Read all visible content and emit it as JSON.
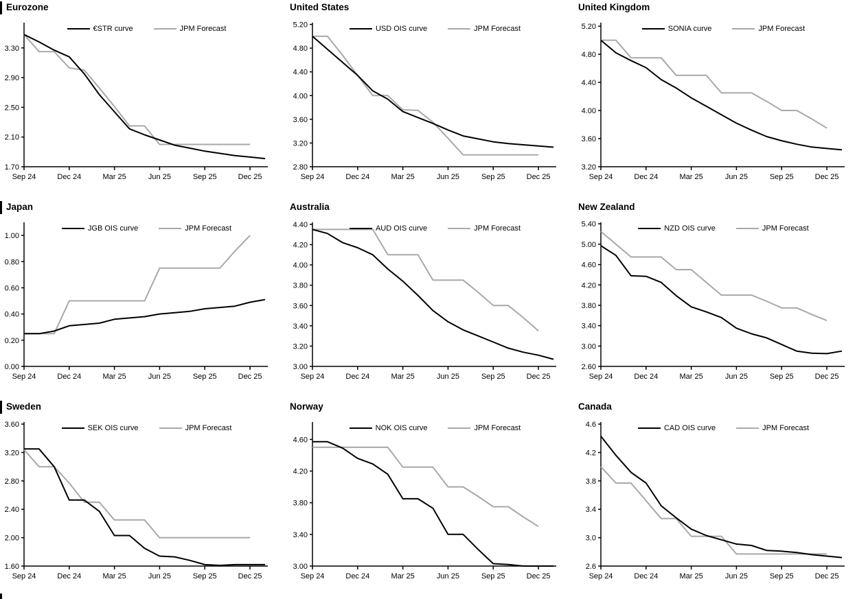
{
  "colors": {
    "ois": "#000000",
    "forecast": "#a8a8a8"
  },
  "x_axis": {
    "tick_labels": [
      "Sep 24",
      "Dec 24",
      "Mar 25",
      "Jun 25",
      "Sep 25",
      "Dec 25"
    ],
    "tick_months": [
      0,
      3,
      6,
      9,
      12,
      15
    ]
  },
  "chart_data": [
    {
      "type": "line",
      "title": "Eurozone",
      "left_accent_bar": true,
      "x_tick_labels": [
        "Sep 24",
        "Dec 24",
        "Mar 25",
        "Jun 25",
        "Sep 25",
        "Dec 25"
      ],
      "ytick_labels": [
        "1.70",
        "2.10",
        "2.50",
        "2.90",
        "3.30"
      ],
      "ylim": [
        1.7,
        3.64
      ],
      "grid": false,
      "legend_position": "top",
      "series": [
        {
          "name": "€STR curve",
          "color_key": "ois",
          "values": [
            3.48,
            3.38,
            3.27,
            3.18,
            2.95,
            2.67,
            2.44,
            2.21,
            2.13,
            2.06,
            1.99,
            1.95,
            1.91,
            1.88,
            1.85,
            1.83,
            1.81
          ]
        },
        {
          "name": "JPM Forecast",
          "color_key": "forecast",
          "values": [
            3.48,
            3.25,
            3.25,
            3.03,
            3.0,
            2.76,
            2.51,
            2.25,
            2.25,
            2.0,
            2.0,
            2.0,
            2.0,
            2.0,
            2.0,
            2.0
          ]
        }
      ]
    },
    {
      "type": "line",
      "title": "United States",
      "left_accent_bar": false,
      "x_tick_labels": [
        "Sep 24",
        "Dec 24",
        "Mar 25",
        "Jun 25",
        "Sep 25",
        "Dec 25"
      ],
      "ytick_labels": [
        "2.80",
        "3.20",
        "3.60",
        "4.00",
        "4.40",
        "4.80",
        "5.20"
      ],
      "ylim": [
        2.8,
        5.23
      ],
      "grid": false,
      "legend_position": "top",
      "series": [
        {
          "name": "USD OIS curve",
          "color_key": "ois",
          "values": [
            5.0,
            4.78,
            4.56,
            4.34,
            4.08,
            3.94,
            3.73,
            3.63,
            3.53,
            3.42,
            3.32,
            3.27,
            3.22,
            3.19,
            3.17,
            3.15,
            3.13
          ]
        },
        {
          "name": "JPM Forecast",
          "color_key": "forecast",
          "values": [
            5.0,
            5.0,
            4.68,
            4.34,
            4.0,
            4.0,
            3.76,
            3.75,
            3.55,
            3.28,
            3.0,
            3.0,
            3.0,
            3.0,
            3.0,
            3.0
          ]
        }
      ]
    },
    {
      "type": "line",
      "title": "United Kingdom",
      "left_accent_bar": false,
      "x_tick_labels": [
        "Sep 24",
        "Dec 24",
        "Mar 25",
        "Jun 25",
        "Sep 25",
        "Dec 25"
      ],
      "ytick_labels": [
        "3.20",
        "3.60",
        "4.00",
        "4.40",
        "4.80",
        "5.20"
      ],
      "ylim": [
        3.2,
        5.25
      ],
      "grid": false,
      "legend_position": "top",
      "series": [
        {
          "name": "SONIA curve",
          "color_key": "ois",
          "values": [
            5.0,
            4.82,
            4.71,
            4.61,
            4.44,
            4.32,
            4.18,
            4.06,
            3.94,
            3.82,
            3.72,
            3.63,
            3.57,
            3.52,
            3.48,
            3.46,
            3.44
          ]
        },
        {
          "name": "JPM Forecast",
          "color_key": "forecast",
          "values": [
            5.0,
            5.0,
            4.75,
            4.75,
            4.75,
            4.5,
            4.5,
            4.5,
            4.25,
            4.25,
            4.25,
            4.13,
            4.0,
            4.0,
            3.88,
            3.75
          ]
        }
      ]
    },
    {
      "type": "line",
      "title": "Japan",
      "left_accent_bar": true,
      "x_tick_labels": [
        "Sep 24",
        "Dec 24",
        "Mar 25",
        "Jun 25",
        "Sep 25",
        "Dec 25"
      ],
      "ytick_labels": [
        "0.00",
        "0.20",
        "0.40",
        "0.60",
        "0.80",
        "1.00"
      ],
      "ylim": [
        0.0,
        1.1
      ],
      "grid": false,
      "legend_position": "top",
      "series": [
        {
          "name": "JGB OIS curve",
          "color_key": "ois",
          "values": [
            0.25,
            0.25,
            0.27,
            0.31,
            0.32,
            0.33,
            0.36,
            0.37,
            0.38,
            0.4,
            0.41,
            0.42,
            0.44,
            0.45,
            0.46,
            0.49,
            0.51
          ]
        },
        {
          "name": "JPM Forecast",
          "color_key": "forecast",
          "values": [
            0.25,
            0.25,
            0.25,
            0.5,
            0.5,
            0.5,
            0.5,
            0.5,
            0.5,
            0.75,
            0.75,
            0.75,
            0.75,
            0.75,
            0.88,
            1.0
          ]
        }
      ]
    },
    {
      "type": "line",
      "title": "Australia",
      "left_accent_bar": false,
      "x_tick_labels": [
        "Sep 24",
        "Dec 24",
        "Mar 25",
        "Jun 25",
        "Sep 25",
        "Dec 25"
      ],
      "ytick_labels": [
        "3.00",
        "3.20",
        "3.40",
        "3.60",
        "3.80",
        "4.00",
        "4.20",
        "4.40"
      ],
      "ylim": [
        3.0,
        4.42
      ],
      "grid": false,
      "legend_position": "top",
      "series": [
        {
          "name": "AUD OIS curve",
          "color_key": "ois",
          "values": [
            4.35,
            4.31,
            4.22,
            4.17,
            4.1,
            3.96,
            3.84,
            3.7,
            3.55,
            3.44,
            3.36,
            3.3,
            3.24,
            3.18,
            3.14,
            3.11,
            3.07
          ]
        },
        {
          "name": "JPM Forecast",
          "color_key": "forecast",
          "values": [
            4.35,
            4.35,
            4.35,
            4.35,
            4.35,
            4.1,
            4.1,
            4.1,
            3.85,
            3.85,
            3.85,
            3.73,
            3.6,
            3.6,
            3.48,
            3.35
          ]
        }
      ]
    },
    {
      "type": "line",
      "title": "New Zealand",
      "left_accent_bar": false,
      "x_tick_labels": [
        "Sep 24",
        "Dec 24",
        "Mar 25",
        "Jun 25",
        "Sep 25",
        "Dec 25"
      ],
      "ytick_labels": [
        "2.60",
        "3.00",
        "3.40",
        "3.80",
        "4.20",
        "4.60",
        "5.00",
        "5.40"
      ],
      "ylim": [
        2.6,
        5.43
      ],
      "grid": false,
      "legend_position": "top",
      "series": [
        {
          "name": "NZD OIS curve",
          "color_key": "ois",
          "values": [
            4.97,
            4.78,
            4.38,
            4.37,
            4.25,
            3.99,
            3.77,
            3.67,
            3.56,
            3.35,
            3.24,
            3.16,
            3.03,
            2.9,
            2.86,
            2.85,
            2.9
          ]
        },
        {
          "name": "JPM Forecast",
          "color_key": "forecast",
          "values": [
            5.25,
            5.0,
            4.75,
            4.75,
            4.75,
            4.5,
            4.5,
            4.25,
            4.0,
            4.0,
            4.0,
            3.88,
            3.75,
            3.75,
            3.62,
            3.5
          ]
        }
      ]
    },
    {
      "type": "line",
      "title": "Sweden",
      "left_accent_bar": true,
      "x_tick_labels": [
        "Sep 24",
        "Dec 24",
        "Mar 25",
        "Jun 25",
        "Sep 25",
        "Dec 25"
      ],
      "ytick_labels": [
        "1.60",
        "2.00",
        "2.40",
        "2.80",
        "3.20",
        "3.60"
      ],
      "ylim": [
        1.6,
        3.63
      ],
      "grid": false,
      "legend_position": "top",
      "series": [
        {
          "name": "SEK OIS curve",
          "color_key": "ois",
          "values": [
            3.25,
            3.25,
            3.0,
            2.53,
            2.53,
            2.37,
            2.03,
            2.03,
            1.85,
            1.74,
            1.73,
            1.68,
            1.62,
            1.61,
            1.62,
            1.62,
            1.62
          ]
        },
        {
          "name": "JPM Forecast",
          "color_key": "forecast",
          "values": [
            3.24,
            3.0,
            3.0,
            2.77,
            2.5,
            2.5,
            2.25,
            2.25,
            2.25,
            2.0,
            2.0,
            2.0,
            2.0,
            2.0,
            2.0,
            2.0
          ]
        }
      ]
    },
    {
      "type": "line",
      "title": "Norway",
      "left_accent_bar": false,
      "x_tick_labels": [
        "Sep 24",
        "Dec 24",
        "Mar 25",
        "Jun 25",
        "Sep 25",
        "Dec 25"
      ],
      "ytick_labels": [
        "3.00",
        "3.40",
        "3.80",
        "4.20",
        "4.60"
      ],
      "ylim": [
        3.0,
        4.82
      ],
      "grid": false,
      "legend_position": "top",
      "series": [
        {
          "name": "NOK OIS curve",
          "color_key": "ois",
          "values": [
            4.57,
            4.57,
            4.49,
            4.36,
            4.29,
            4.16,
            3.85,
            3.85,
            3.73,
            3.4,
            3.4,
            3.21,
            3.03,
            3.02,
            3.0,
            3.0,
            3.0
          ]
        },
        {
          "name": "JPM Forecast",
          "color_key": "forecast",
          "values": [
            4.5,
            4.5,
            4.5,
            4.5,
            4.5,
            4.5,
            4.25,
            4.25,
            4.25,
            4.0,
            4.0,
            3.88,
            3.75,
            3.75,
            3.62,
            3.5
          ]
        }
      ]
    },
    {
      "type": "line",
      "title": "Canada",
      "left_accent_bar": false,
      "x_tick_labels": [
        "Sep 24",
        "Dec 24",
        "Mar 25",
        "Jun 25",
        "Sep 25",
        "Dec 25"
      ],
      "ytick_labels": [
        "2.6",
        "3.0",
        "3.4",
        "3.8",
        "4.2",
        "4.6"
      ],
      "ylim": [
        2.6,
        4.63
      ],
      "grid": false,
      "legend_position": "top",
      "series": [
        {
          "name": "CAD OIS curve",
          "color_key": "ois",
          "values": [
            4.43,
            4.16,
            3.92,
            3.77,
            3.45,
            3.28,
            3.12,
            3.03,
            2.97,
            2.91,
            2.89,
            2.82,
            2.81,
            2.79,
            2.76,
            2.74,
            2.72
          ]
        },
        {
          "name": "JPM Forecast",
          "color_key": "forecast",
          "values": [
            4.0,
            3.77,
            3.77,
            3.52,
            3.27,
            3.27,
            3.02,
            3.02,
            3.02,
            2.77,
            2.77,
            2.77,
            2.77,
            2.77,
            2.77,
            2.77
          ]
        }
      ]
    }
  ]
}
